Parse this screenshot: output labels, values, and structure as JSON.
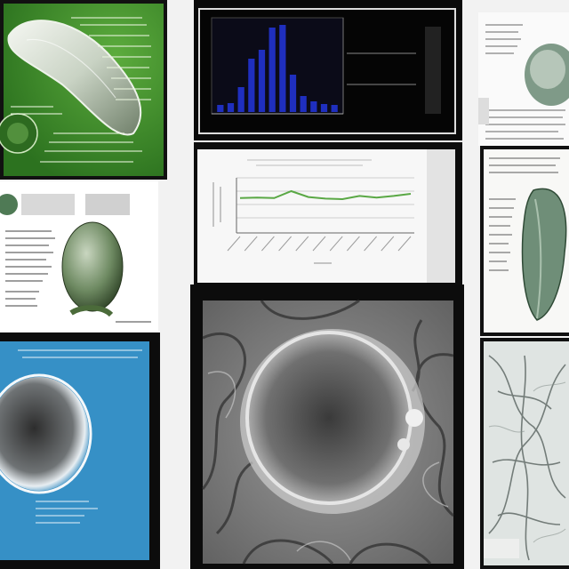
{
  "collage": {
    "panels": [
      {
        "id": "green-specimen",
        "kind": "annotated-illustration"
      },
      {
        "id": "bar-chart",
        "kind": "chart"
      },
      {
        "id": "document-top-right",
        "kind": "text-document"
      },
      {
        "id": "egg-specimen",
        "kind": "annotated-illustration"
      },
      {
        "id": "line-chart",
        "kind": "chart"
      },
      {
        "id": "leaf-specimen",
        "kind": "annotated-illustration"
      },
      {
        "id": "blue-cell",
        "kind": "microscopy"
      },
      {
        "id": "center-micrograph",
        "kind": "microscopy"
      },
      {
        "id": "vein-network",
        "kind": "microscopy"
      }
    ]
  },
  "colors": {
    "green_bg": "#3f8f2c",
    "blue_bg": "#2a86be",
    "bar_fill": "#1f2fbf",
    "line_stroke": "#5aa845"
  },
  "chart_data": [
    {
      "type": "bar",
      "categories": [
        "1",
        "2",
        "3",
        "4",
        "5",
        "6",
        "7",
        "8",
        "9",
        "10",
        "11",
        "12"
      ],
      "values": [
        8,
        10,
        28,
        60,
        70,
        95,
        98,
        42,
        18,
        12,
        9,
        8
      ],
      "ylim": [
        0,
        100
      ],
      "grid": false
    },
    {
      "type": "line",
      "x": [
        "1",
        "2",
        "3",
        "4",
        "5",
        "6",
        "7",
        "8",
        "9",
        "10",
        "11"
      ],
      "series": [
        {
          "values": [
            62,
            63,
            62,
            75,
            64,
            61,
            60,
            66,
            63,
            66,
            70
          ]
        }
      ],
      "ylim": [
        0,
        100
      ],
      "grid": true
    }
  ]
}
